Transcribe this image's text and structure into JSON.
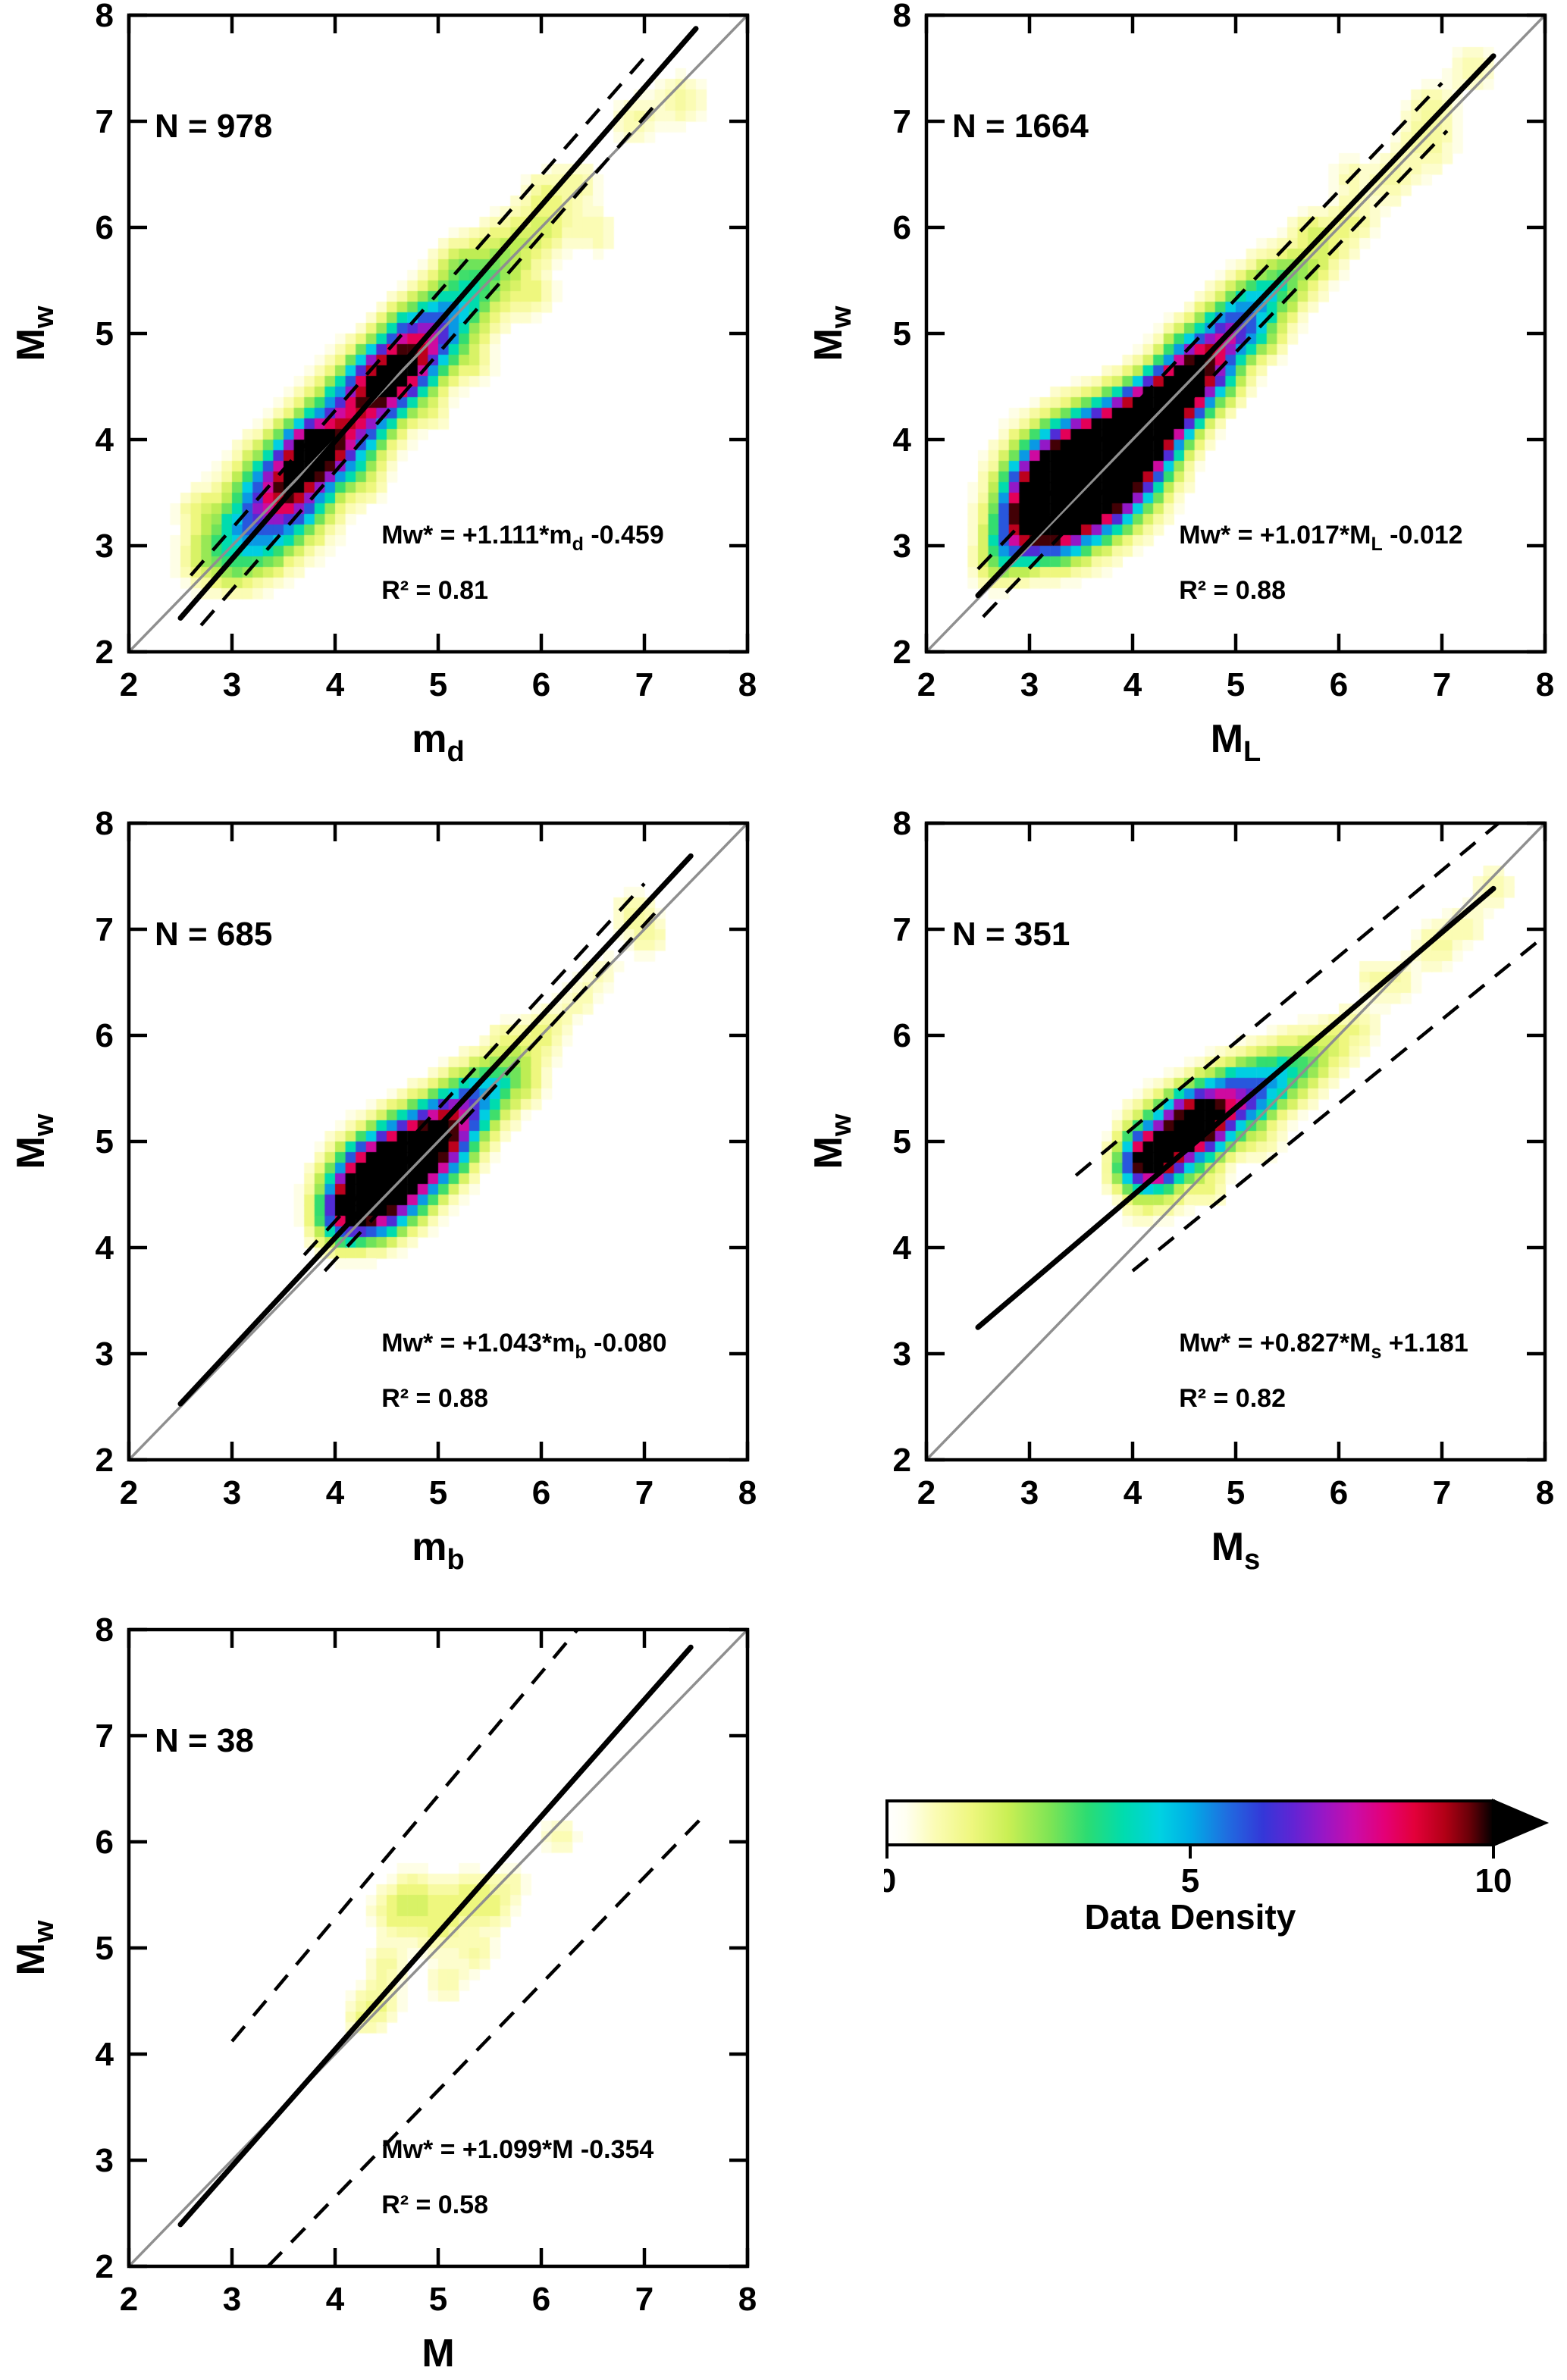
{
  "chart_data": {
    "type": "heatmap",
    "subtype": "magnitude-conversion-density-scatter-panels",
    "shared_axes": {
      "xmin": 2,
      "xmax": 8,
      "ymin": 2,
      "ymax": 8,
      "xticks": [
        2,
        3,
        4,
        5,
        6,
        7,
        8
      ],
      "yticks": [
        2,
        3,
        4,
        5,
        6,
        7,
        8
      ]
    },
    "ylabel": {
      "main": "M",
      "sub": "w"
    },
    "identity_line": {
      "color": "#8f8f8f",
      "from": [
        2,
        2
      ],
      "to": [
        8,
        8
      ]
    },
    "panels": [
      {
        "id": "md",
        "n_label": "N = 978",
        "xlabel": {
          "main": "m",
          "sub": "d"
        },
        "equation": {
          "pre": "Mw* = +1.111*m",
          "sub": "d",
          "post": " -0.459"
        },
        "r2": "R² = 0.81",
        "fit": {
          "slope": 1.111,
          "intercept": -0.459,
          "x_range": [
            2.5,
            7.5
          ]
        },
        "dashed": [
          [
            2.6,
            2.72,
            7.0,
            7.6
          ],
          [
            2.7,
            2.25,
            7.1,
            7.15
          ]
        ],
        "kernels": [
          [
            3.45,
            3.4,
            0.28,
            4.5
          ],
          [
            3.6,
            3.62,
            0.24,
            5.5
          ],
          [
            3.78,
            3.88,
            0.17,
            7.8
          ],
          [
            3.95,
            3.95,
            0.26,
            4.5
          ],
          [
            4.15,
            4.15,
            0.24,
            4.2
          ],
          [
            4.35,
            4.45,
            0.22,
            5.8
          ],
          [
            4.55,
            4.6,
            0.2,
            6.2
          ],
          [
            4.72,
            4.78,
            0.22,
            5.0
          ],
          [
            4.9,
            4.95,
            0.22,
            3.6
          ],
          [
            5.1,
            5.15,
            0.22,
            3.0
          ],
          [
            5.35,
            5.45,
            0.24,
            2.2
          ],
          [
            5.6,
            5.65,
            0.22,
            1.4
          ],
          [
            3.2,
            3.15,
            0.26,
            2.6
          ],
          [
            2.95,
            3.0,
            0.22,
            1.6
          ],
          [
            2.75,
            2.85,
            0.18,
            1.0
          ],
          [
            5.85,
            5.9,
            0.2,
            1.1
          ],
          [
            6.1,
            6.05,
            0.18,
            0.9
          ],
          [
            6.35,
            6.4,
            0.16,
            0.85
          ],
          [
            6.0,
            6.35,
            0.14,
            0.7
          ],
          [
            6.9,
            7.0,
            0.16,
            0.85
          ],
          [
            7.35,
            7.2,
            0.17,
            0.9
          ],
          [
            6.55,
            5.95,
            0.14,
            0.75
          ],
          [
            5.95,
            5.35,
            0.14,
            0.8
          ],
          [
            5.35,
            4.7,
            0.13,
            0.8
          ],
          [
            4.95,
            4.25,
            0.12,
            0.75
          ],
          [
            2.65,
            3.35,
            0.13,
            0.8
          ],
          [
            3.05,
            2.7,
            0.13,
            0.75
          ],
          [
            3.35,
            2.85,
            0.12,
            0.7
          ],
          [
            4.3,
            3.6,
            0.12,
            0.7
          ],
          [
            5.15,
            5.7,
            0.12,
            0.7
          ],
          [
            4.65,
            5.1,
            0.12,
            0.65
          ]
        ]
      },
      {
        "id": "ML",
        "n_label": "N = 1664",
        "xlabel": {
          "main": "M",
          "sub": "L"
        },
        "equation": {
          "pre": "Mw* = +1.017*M",
          "sub": "L",
          "post": " -0.012"
        },
        "r2": "R² = 0.88",
        "fit": {
          "slope": 1.017,
          "intercept": -0.012,
          "x_range": [
            2.5,
            7.5
          ]
        },
        "dashed": [
          [
            2.5,
            2.78,
            7.0,
            7.36
          ],
          [
            2.55,
            2.33,
            7.05,
            6.91
          ]
        ],
        "kernels": [
          [
            3.3,
            3.5,
            0.3,
            11.5
          ],
          [
            3.55,
            3.65,
            0.3,
            12
          ],
          [
            3.8,
            3.8,
            0.28,
            11.5
          ],
          [
            4.05,
            4.05,
            0.24,
            10.5
          ],
          [
            3.1,
            3.3,
            0.22,
            8
          ],
          [
            4.25,
            4.25,
            0.2,
            8.5
          ],
          [
            4.45,
            4.45,
            0.2,
            7
          ],
          [
            4.6,
            4.6,
            0.2,
            6.5
          ],
          [
            4.8,
            4.85,
            0.2,
            5
          ],
          [
            5.0,
            5.05,
            0.2,
            3.6
          ],
          [
            5.2,
            5.25,
            0.2,
            2.8
          ],
          [
            5.4,
            5.45,
            0.2,
            2.0
          ],
          [
            2.9,
            3.1,
            0.2,
            3.2
          ],
          [
            2.75,
            2.9,
            0.16,
            1.8
          ],
          [
            5.65,
            5.6,
            0.18,
            1.4
          ],
          [
            5.9,
            5.85,
            0.18,
            1.1
          ],
          [
            6.15,
            6.1,
            0.16,
            0.9
          ],
          [
            6.5,
            6.45,
            0.16,
            0.85
          ],
          [
            6.85,
            6.8,
            0.2,
            1.0
          ],
          [
            6.9,
            7.15,
            0.14,
            0.8
          ],
          [
            7.3,
            7.5,
            0.16,
            0.85
          ],
          [
            3.35,
            2.95,
            0.13,
            0.8
          ],
          [
            2.6,
            2.75,
            0.12,
            0.7
          ],
          [
            4.95,
            4.5,
            0.12,
            0.75
          ],
          [
            5.3,
            4.9,
            0.12,
            0.7
          ],
          [
            4.45,
            4.95,
            0.12,
            0.7
          ],
          [
            6.1,
            6.5,
            0.12,
            0.65
          ],
          [
            5.7,
            6.0,
            0.12,
            0.65
          ]
        ]
      },
      {
        "id": "mb",
        "n_label": "N = 685",
        "xlabel": {
          "main": "m",
          "sub": "b"
        },
        "equation": {
          "pre": "Mw* = +1.043*m",
          "sub": "b",
          "post": " -0.080"
        },
        "r2": "R² = 0.88",
        "fit": {
          "slope": 1.043,
          "intercept": -0.08,
          "x_range": [
            2.5,
            7.45
          ]
        },
        "dashed": [
          [
            3.7,
            3.93,
            7.0,
            7.43
          ],
          [
            3.9,
            3.78,
            7.1,
            7.15
          ]
        ],
        "kernels": [
          [
            4.35,
            4.55,
            0.24,
            9.8
          ],
          [
            4.55,
            4.7,
            0.24,
            8.5
          ],
          [
            4.75,
            4.85,
            0.23,
            7.2
          ],
          [
            4.95,
            5.0,
            0.22,
            5.8
          ],
          [
            5.12,
            5.15,
            0.2,
            4.4
          ],
          [
            4.18,
            4.38,
            0.2,
            5.2
          ],
          [
            5.3,
            5.35,
            0.2,
            3.2
          ],
          [
            5.5,
            5.5,
            0.2,
            2.2
          ],
          [
            4.05,
            4.25,
            0.17,
            2.6
          ],
          [
            5.68,
            5.66,
            0.18,
            1.4
          ],
          [
            5.9,
            5.88,
            0.16,
            1.05
          ],
          [
            6.1,
            6.1,
            0.14,
            0.85
          ],
          [
            6.38,
            6.35,
            0.13,
            0.75
          ],
          [
            6.6,
            6.6,
            0.12,
            0.65
          ],
          [
            6.9,
            7.15,
            0.16,
            0.9
          ],
          [
            7.05,
            6.9,
            0.13,
            0.7
          ],
          [
            5.62,
            6.0,
            0.11,
            0.55
          ],
          [
            5.9,
            5.5,
            0.11,
            0.55
          ],
          [
            4.5,
            4.15,
            0.11,
            0.6
          ],
          [
            5.2,
            4.8,
            0.11,
            0.6
          ]
        ]
      },
      {
        "id": "Ms",
        "n_label": "N = 351",
        "xlabel": {
          "main": "M",
          "sub": "s"
        },
        "equation": {
          "pre": "Mw* = +0.827*M",
          "sub": "s",
          "post": " +1.181"
        },
        "r2": "R² = 0.82",
        "fit": {
          "slope": 0.827,
          "intercept": 1.181,
          "x_range": [
            2.5,
            7.5
          ]
        },
        "dashed": [
          [
            3.45,
            4.68,
            7.55,
            8.0
          ],
          [
            4.0,
            3.78,
            7.95,
            6.9
          ]
        ],
        "kernels": [
          [
            4.2,
            4.85,
            0.17,
            8.8
          ],
          [
            4.62,
            5.18,
            0.18,
            8.8
          ],
          [
            4.4,
            5.0,
            0.24,
            6.0
          ],
          [
            4.85,
            5.3,
            0.22,
            4.4
          ],
          [
            5.05,
            5.42,
            0.2,
            3.4
          ],
          [
            5.28,
            5.55,
            0.2,
            2.6
          ],
          [
            5.5,
            5.65,
            0.2,
            1.9
          ],
          [
            4.02,
            4.72,
            0.16,
            3.0
          ],
          [
            5.72,
            5.78,
            0.18,
            1.3
          ],
          [
            5.95,
            5.9,
            0.17,
            1.0
          ],
          [
            6.2,
            6.1,
            0.15,
            0.8
          ],
          [
            6.55,
            6.5,
            0.15,
            0.8
          ],
          [
            6.95,
            6.85,
            0.16,
            0.9
          ],
          [
            7.25,
            7.05,
            0.13,
            0.7
          ],
          [
            7.5,
            7.4,
            0.14,
            0.8
          ],
          [
            4.3,
            4.45,
            0.13,
            0.85
          ],
          [
            4.75,
            4.55,
            0.12,
            0.7
          ],
          [
            5.3,
            5.0,
            0.12,
            0.65
          ],
          [
            4.05,
            4.35,
            0.11,
            0.6
          ],
          [
            6.3,
            6.55,
            0.11,
            0.6
          ]
        ]
      },
      {
        "id": "M",
        "n_label": "N = 38",
        "xlabel": {
          "main": "M",
          "sub": ""
        },
        "equation": {
          "pre": "Mw* = +1.099*M",
          "sub": "",
          "post": " -0.354"
        },
        "r2": "R² = 0.58",
        "fit": {
          "slope": 1.099,
          "intercept": -0.354,
          "x_range": [
            2.5,
            7.45
          ]
        },
        "dashed": [
          [
            3.0,
            4.12,
            6.35,
            8.0
          ],
          [
            3.35,
            2.0,
            7.55,
            6.22
          ]
        ],
        "kernels": [
          [
            4.42,
            4.48,
            0.16,
            1.05
          ],
          [
            4.5,
            4.85,
            0.13,
            0.8
          ],
          [
            4.58,
            5.32,
            0.16,
            1.1
          ],
          [
            4.78,
            5.52,
            0.16,
            1.0
          ],
          [
            5.0,
            5.22,
            0.19,
            1.15
          ],
          [
            5.28,
            5.5,
            0.16,
            1.0
          ],
          [
            5.52,
            5.38,
            0.15,
            0.9
          ],
          [
            5.38,
            4.95,
            0.13,
            0.8
          ],
          [
            5.08,
            4.68,
            0.13,
            0.8
          ],
          [
            6.18,
            6.05,
            0.13,
            0.8
          ],
          [
            4.22,
            4.32,
            0.11,
            0.7
          ],
          [
            5.7,
            5.6,
            0.12,
            0.7
          ]
        ]
      }
    ],
    "colorbar": {
      "title": "Data Density",
      "min": 0,
      "max": 10,
      "ticks": [
        {
          "label": "0",
          "t": 0
        },
        {
          "label": "5",
          "t": 0.5
        },
        {
          "label": "10",
          "t": 1
        }
      ],
      "stops": [
        [
          0.0,
          "#ffffff"
        ],
        [
          0.03,
          "#fffff2"
        ],
        [
          0.08,
          "#fbfcb4"
        ],
        [
          0.14,
          "#eef77e"
        ],
        [
          0.2,
          "#c9ef54"
        ],
        [
          0.27,
          "#7ce455"
        ],
        [
          0.33,
          "#2cdc72"
        ],
        [
          0.39,
          "#00dcae"
        ],
        [
          0.45,
          "#00d2e2"
        ],
        [
          0.5,
          "#00aee6"
        ],
        [
          0.56,
          "#1f6ee0"
        ],
        [
          0.62,
          "#3437d8"
        ],
        [
          0.67,
          "#6224d4"
        ],
        [
          0.72,
          "#9817c6"
        ],
        [
          0.77,
          "#c90caa"
        ],
        [
          0.82,
          "#e40077"
        ],
        [
          0.87,
          "#e3003a"
        ],
        [
          0.92,
          "#b20016"
        ],
        [
          0.96,
          "#6a0008"
        ],
        [
          1.0,
          "#000000"
        ]
      ]
    }
  }
}
